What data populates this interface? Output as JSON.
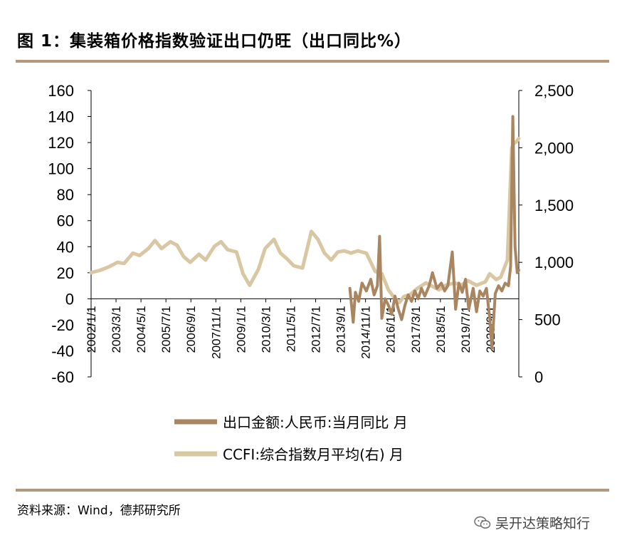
{
  "title": "图 1：集装箱价格指数验证出口仍旺（出口同比%）",
  "source": "资料来源：Wind，德邦研究所",
  "watermark": "吴开达策略知行",
  "colors": {
    "rule": "#b5977a",
    "export": "#a98560",
    "ccfi": "#d9c7a3",
    "axis": "#000000"
  },
  "chart_data": {
    "type": "line",
    "title": "集装箱价格指数验证出口仍旺（出口同比%）",
    "left_axis": {
      "ylim": [
        -60,
        160
      ],
      "ticks": [
        "160",
        "140",
        "120",
        "100",
        "80",
        "60",
        "40",
        "20",
        "0",
        "-20",
        "-40",
        "-60"
      ]
    },
    "right_axis": {
      "ylim": [
        0,
        2500
      ],
      "ticks": [
        "2,500",
        "2,000",
        "1,500",
        "1,000",
        "500",
        "0"
      ]
    },
    "x_range": [
      2002.0,
      2021.42
    ],
    "x_tick_labels": [
      "2002/1/1",
      "2003/3/1",
      "2004/5/1",
      "2005/7/1",
      "2006/9/1",
      "2007/11/1",
      "2009/1/1",
      "2010/3/1",
      "2011/5/1",
      "2012/7/1",
      "2013/9/1",
      "2014/11/1",
      "2016/1/1",
      "2017/3/1",
      "2018/5/1",
      "2019/7/1",
      "2020/9/1"
    ],
    "legend": [
      {
        "label": "出口金额:人民币:当月同比 月",
        "series": "export"
      },
      {
        "label": "CCFI:综合指数月平均(右) 月",
        "series": "ccfi"
      }
    ],
    "series": [
      {
        "name": "CCFI:综合指数月平均(右) 月",
        "axis": "right",
        "points": [
          [
            2002.0,
            910
          ],
          [
            2002.4,
            930
          ],
          [
            2002.8,
            960
          ],
          [
            2003.2,
            1000
          ],
          [
            2003.5,
            990
          ],
          [
            2003.9,
            1080
          ],
          [
            2004.2,
            1060
          ],
          [
            2004.6,
            1120
          ],
          [
            2004.9,
            1190
          ],
          [
            2005.2,
            1120
          ],
          [
            2005.6,
            1180
          ],
          [
            2005.9,
            1150
          ],
          [
            2006.2,
            1050
          ],
          [
            2006.5,
            1000
          ],
          [
            2006.9,
            1070
          ],
          [
            2007.2,
            1020
          ],
          [
            2007.6,
            1140
          ],
          [
            2007.9,
            1180
          ],
          [
            2008.2,
            1110
          ],
          [
            2008.6,
            1090
          ],
          [
            2008.9,
            900
          ],
          [
            2009.2,
            800
          ],
          [
            2009.6,
            940
          ],
          [
            2009.9,
            1120
          ],
          [
            2010.3,
            1200
          ],
          [
            2010.6,
            1080
          ],
          [
            2010.9,
            1030
          ],
          [
            2011.2,
            970
          ],
          [
            2011.6,
            950
          ],
          [
            2012.0,
            1270
          ],
          [
            2012.3,
            1200
          ],
          [
            2012.6,
            1080
          ],
          [
            2012.9,
            1020
          ],
          [
            2013.2,
            1090
          ],
          [
            2013.5,
            1100
          ],
          [
            2013.8,
            1080
          ],
          [
            2014.1,
            1100
          ],
          [
            2014.5,
            1080
          ],
          [
            2014.9,
            920
          ],
          [
            2015.2,
            900
          ],
          [
            2015.5,
            760
          ],
          [
            2015.8,
            680
          ],
          [
            2016.0,
            650
          ],
          [
            2016.2,
            700
          ],
          [
            2016.5,
            720
          ],
          [
            2016.8,
            770
          ],
          [
            2017.2,
            820
          ],
          [
            2017.5,
            790
          ],
          [
            2017.8,
            760
          ],
          [
            2018.1,
            800
          ],
          [
            2018.5,
            820
          ],
          [
            2018.8,
            800
          ],
          [
            2019.1,
            840
          ],
          [
            2019.5,
            800
          ],
          [
            2019.9,
            830
          ],
          [
            2020.1,
            900
          ],
          [
            2020.4,
            850
          ],
          [
            2020.6,
            870
          ],
          [
            2020.9,
            1020
          ],
          [
            2021.0,
            1500
          ],
          [
            2021.1,
            2000
          ],
          [
            2021.2,
            2040
          ],
          [
            2021.3,
            2050
          ],
          [
            2021.42,
            2080
          ]
        ]
      },
      {
        "name": "出口金额:人民币:当月同比 月",
        "axis": "left",
        "points": [
          [
            2013.75,
            8
          ],
          [
            2013.9,
            -18
          ],
          [
            2014.0,
            5
          ],
          [
            2014.15,
            -2
          ],
          [
            2014.3,
            12
          ],
          [
            2014.5,
            6
          ],
          [
            2014.7,
            15
          ],
          [
            2014.85,
            3
          ],
          [
            2015.0,
            10
          ],
          [
            2015.1,
            48
          ],
          [
            2015.2,
            -15
          ],
          [
            2015.35,
            0
          ],
          [
            2015.5,
            -5
          ],
          [
            2015.65,
            -12
          ],
          [
            2015.8,
            2
          ],
          [
            2015.95,
            -8
          ],
          [
            2016.1,
            -16
          ],
          [
            2016.25,
            -5
          ],
          [
            2016.4,
            3
          ],
          [
            2016.55,
            -2
          ],
          [
            2016.7,
            6
          ],
          [
            2016.85,
            0
          ],
          [
            2017.0,
            8
          ],
          [
            2017.15,
            2
          ],
          [
            2017.35,
            10
          ],
          [
            2017.5,
            20
          ],
          [
            2017.7,
            8
          ],
          [
            2017.9,
            12
          ],
          [
            2018.05,
            6
          ],
          [
            2018.2,
            10
          ],
          [
            2018.4,
            36
          ],
          [
            2018.55,
            -8
          ],
          [
            2018.7,
            12
          ],
          [
            2018.85,
            5
          ],
          [
            2019.0,
            15
          ],
          [
            2019.15,
            -8
          ],
          [
            2019.35,
            8
          ],
          [
            2019.5,
            -10
          ],
          [
            2019.65,
            6
          ],
          [
            2019.8,
            2
          ],
          [
            2019.95,
            8
          ],
          [
            2020.1,
            -15
          ],
          [
            2020.2,
            -38
          ],
          [
            2020.35,
            4
          ],
          [
            2020.5,
            10
          ],
          [
            2020.65,
            6
          ],
          [
            2020.8,
            12
          ],
          [
            2020.95,
            10
          ],
          [
            2021.05,
            25
          ],
          [
            2021.15,
            140
          ],
          [
            2021.25,
            40
          ],
          [
            2021.35,
            20
          ],
          [
            2021.42,
            22
          ]
        ]
      }
    ]
  }
}
